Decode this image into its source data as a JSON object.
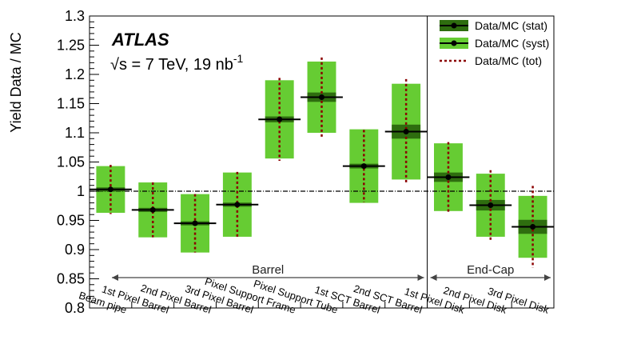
{
  "chart_data": {
    "type": "bar",
    "experiment": "ATLAS",
    "energy_label": "√s = 7 TeV, 19 nb",
    "energy_exponent": "-1",
    "ylabel": "Yield Data / MC",
    "xlabel": "",
    "ylim": [
      0.8,
      1.3
    ],
    "yticks": [
      "0.8",
      "0.85",
      "0.9",
      "0.95",
      "1",
      "1.05",
      "1.1",
      "1.15",
      "1.2",
      "1.25",
      "1.3"
    ],
    "reference_line": 1.0,
    "categories": [
      "Beam pipe",
      "1st Pixel Barrel",
      "2nd Pixel Barrel",
      "3rd Pixel Barrel",
      "Pixel Support Frame",
      "Pixel Support Tube",
      "1st SCT Barrel",
      "2nd SCT Barrel",
      "1st Pixel Disk",
      "2nd Pixel Disk",
      "3rd Pixel Disk"
    ],
    "values": [
      1.003,
      0.968,
      0.945,
      0.977,
      1.123,
      1.161,
      1.043,
      1.102,
      1.024,
      0.976,
      0.939
    ],
    "stat_err": [
      0.003,
      0.002,
      0.002,
      0.003,
      0.005,
      0.008,
      0.004,
      0.012,
      0.008,
      0.009,
      0.012
    ],
    "syst_err": [
      0.04,
      0.047,
      0.05,
      0.055,
      0.067,
      0.061,
      0.063,
      0.082,
      0.058,
      0.054,
      0.053
    ],
    "tot_err": [
      0.042,
      0.047,
      0.05,
      0.056,
      0.071,
      0.068,
      0.062,
      0.09,
      0.06,
      0.06,
      0.07
    ],
    "regions": [
      {
        "label": "Barrel",
        "from_index": 0,
        "to_index": 7
      },
      {
        "label": "End-Cap",
        "from_index": 8,
        "to_index": 10
      }
    ],
    "legend": {
      "placement": "top-right",
      "entries": [
        "Data/MC (stat)",
        "Data/MC (syst)",
        "Data/MC (tot)"
      ]
    },
    "colors": {
      "stat": "#2e6d0f",
      "syst": "#66cc33",
      "tot": "#8b0000",
      "marker": "#000000"
    },
    "grid": false
  }
}
